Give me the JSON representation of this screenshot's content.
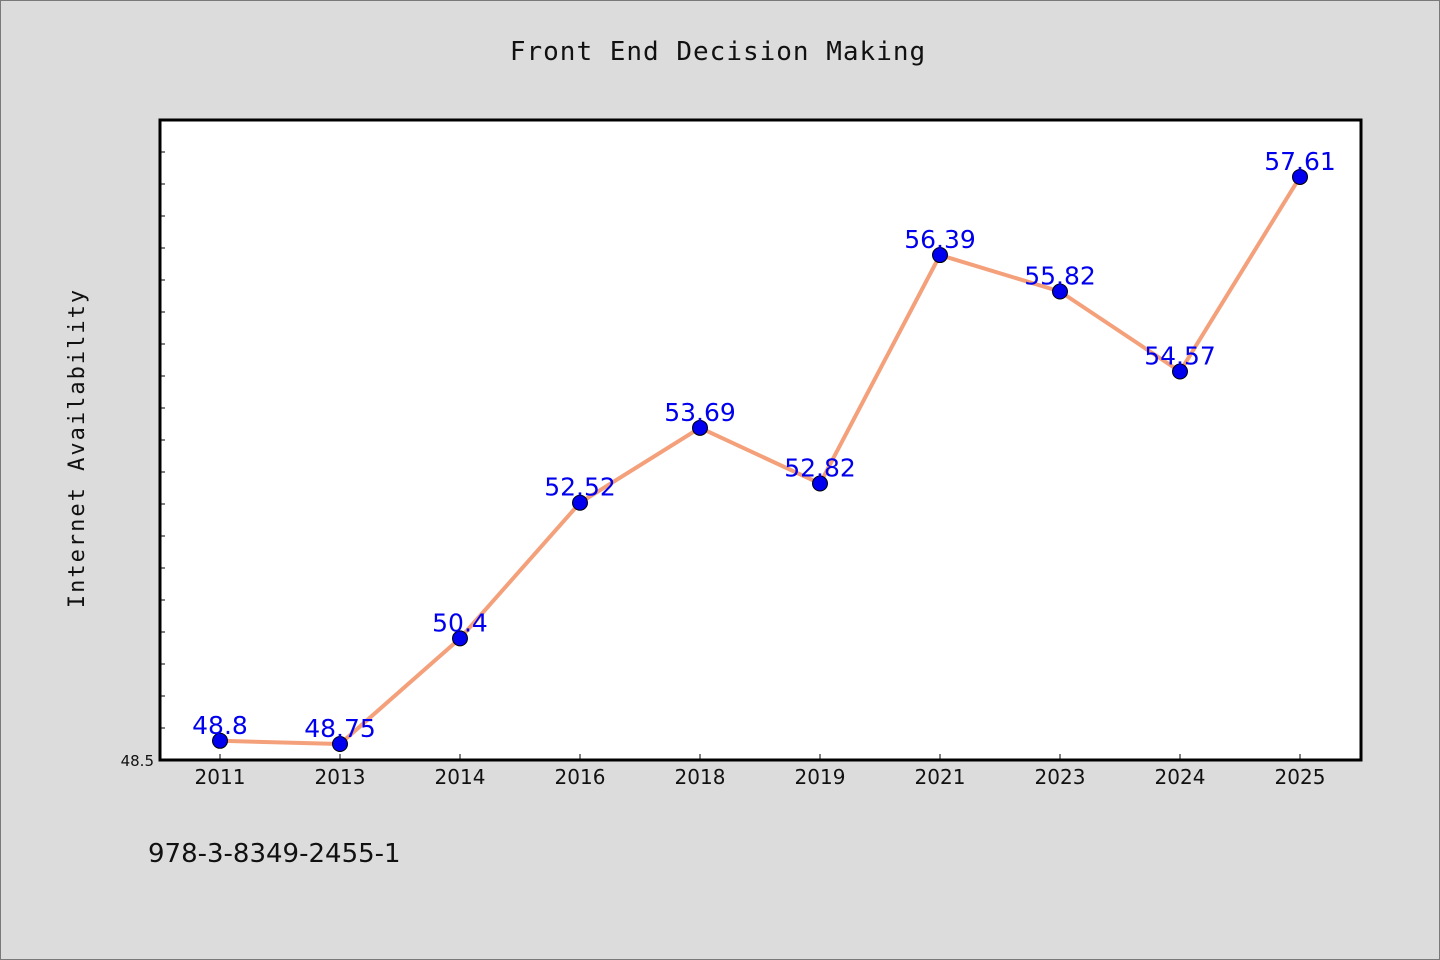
{
  "chart_data": {
    "type": "line",
    "title": "Front End Decision Making",
    "xlabel": "",
    "ylabel": "Internet Availability",
    "categories": [
      "2011",
      "2013",
      "2014",
      "2016",
      "2018",
      "2019",
      "2021",
      "2023",
      "2024",
      "2025"
    ],
    "values": [
      48.8,
      48.75,
      50.4,
      52.52,
      53.69,
      52.82,
      56.39,
      55.82,
      54.57,
      57.61
    ],
    "data_labels": [
      "48.8",
      "48.75",
      "50.4",
      "52.52",
      "53.69",
      "52.82",
      "56.39",
      "55.82",
      "54.57",
      "57.61"
    ],
    "ylim": [
      48.5,
      58.5
    ],
    "ytick_labels": [
      "48.5"
    ],
    "grid": false,
    "legend": "none",
    "colors": {
      "line": "#f4a07a",
      "marker": "#0000ee",
      "label": "#0000ee",
      "background": "#dcdcdc",
      "plot_background": "#ffffff"
    }
  },
  "footnote": "978-3-8349-2455-1"
}
